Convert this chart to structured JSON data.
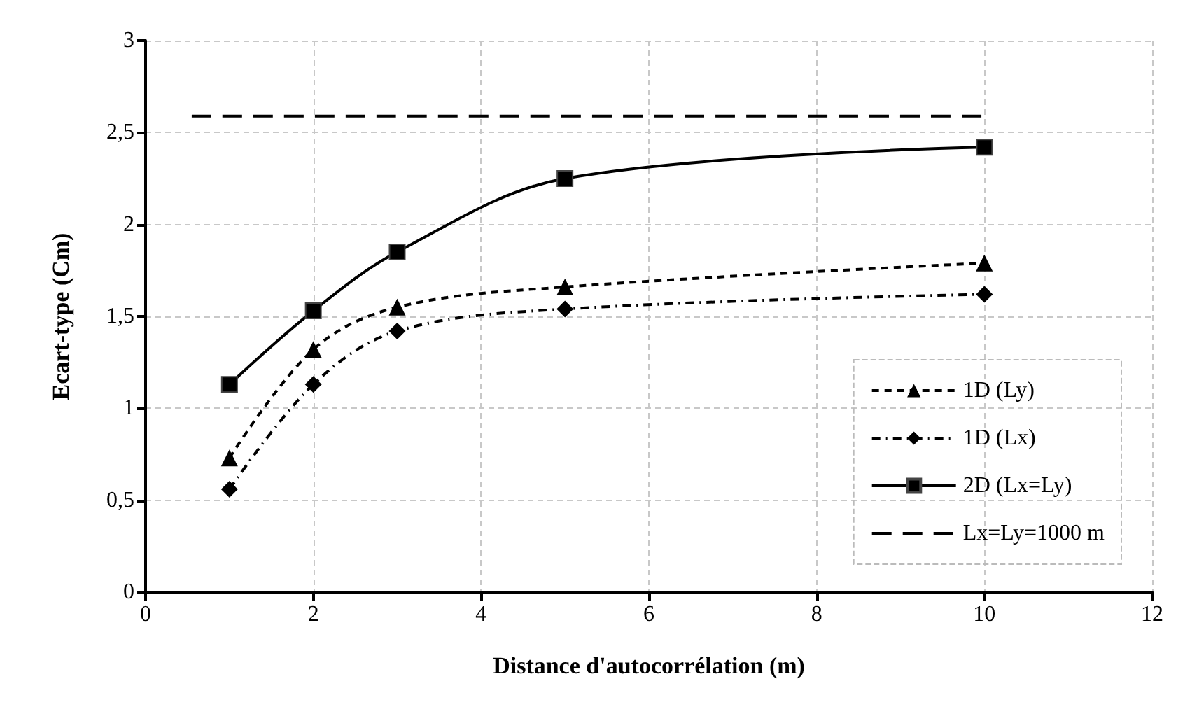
{
  "chart_data": {
    "type": "line",
    "xlabel": "Distance d'autocorrélation (m)",
    "ylabel": "Ecart-type (Cm)",
    "x": [
      1,
      2,
      3,
      5,
      10
    ],
    "series": [
      {
        "name": "1D (Ly)",
        "color": "#000000",
        "marker": "triangle",
        "line_style": "dashed",
        "values": [
          0.73,
          1.32,
          1.55,
          1.66,
          1.79
        ]
      },
      {
        "name": "1D (Lx)",
        "color": "#000000",
        "marker": "diamond",
        "line_style": "dashdot",
        "values": [
          0.56,
          1.13,
          1.42,
          1.54,
          1.62
        ]
      },
      {
        "name": "2D (Lx=Ly)",
        "color": "#000000",
        "marker": "square",
        "line_style": "solid",
        "values": [
          1.13,
          1.53,
          1.85,
          2.25,
          2.42
        ]
      },
      {
        "name": "Lx=Ly=1000 m",
        "color": "#000000",
        "marker": "none",
        "line_style": "longdash",
        "x": [
          0.55,
          10
        ],
        "values": [
          2.59,
          2.59
        ]
      }
    ],
    "xlim": [
      0,
      12
    ],
    "xticks": [
      0,
      2,
      4,
      6,
      8,
      10,
      12
    ],
    "ylim": [
      0,
      3
    ],
    "yticks": [
      0,
      {
        "value": 0.5,
        "label": "0,5"
      },
      1,
      {
        "value": 1.5,
        "label": "1,5"
      },
      2,
      {
        "value": 2.5,
        "label": "2,5"
      },
      3
    ],
    "grid": true,
    "legend": "bottom right"
  }
}
